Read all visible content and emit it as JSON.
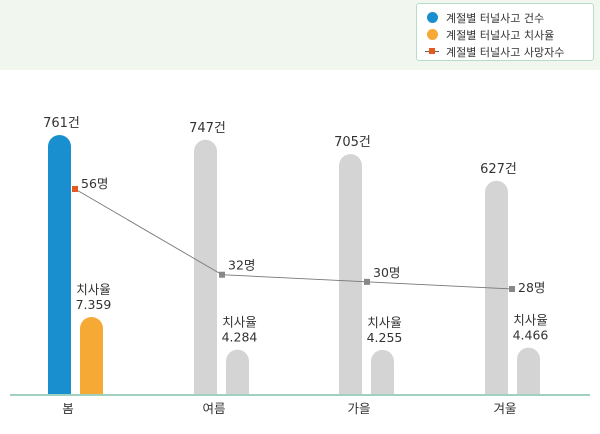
{
  "chart_data": {
    "type": "bar",
    "categories": [
      "봄",
      "여름",
      "가을",
      "겨울"
    ],
    "ylim": [
      0,
      800
    ],
    "series": [
      {
        "name": "계절별 터널사고 건수",
        "values": [
          761,
          747,
          705,
          627
        ],
        "labels": [
          "761건",
          "747건",
          "705건",
          "627건"
        ]
      },
      {
        "name": "계절별 터널사고 치사율",
        "values": [
          7.359,
          4.284,
          4.255,
          4.466
        ],
        "label_title": "치사율",
        "labels": [
          "7.359",
          "4.284",
          "4.255",
          "4.466"
        ]
      },
      {
        "name": "계절별 터널사고 사망자수",
        "type": "line",
        "values": [
          56,
          32,
          30,
          28
        ],
        "labels": [
          "56명",
          "32명",
          "30명",
          "28명"
        ]
      }
    ],
    "grid": false,
    "legend_position": "top-right",
    "highlight_category": "봄"
  },
  "colors": {
    "count_highlight": "#1a8fd0",
    "rate_highlight": "#f6aa35",
    "muted_bar": "#d4d4d4",
    "line": "#777777",
    "marker_highlight": "#e55a1f",
    "marker_muted": "#888888",
    "axis": "#9fd0c0"
  }
}
